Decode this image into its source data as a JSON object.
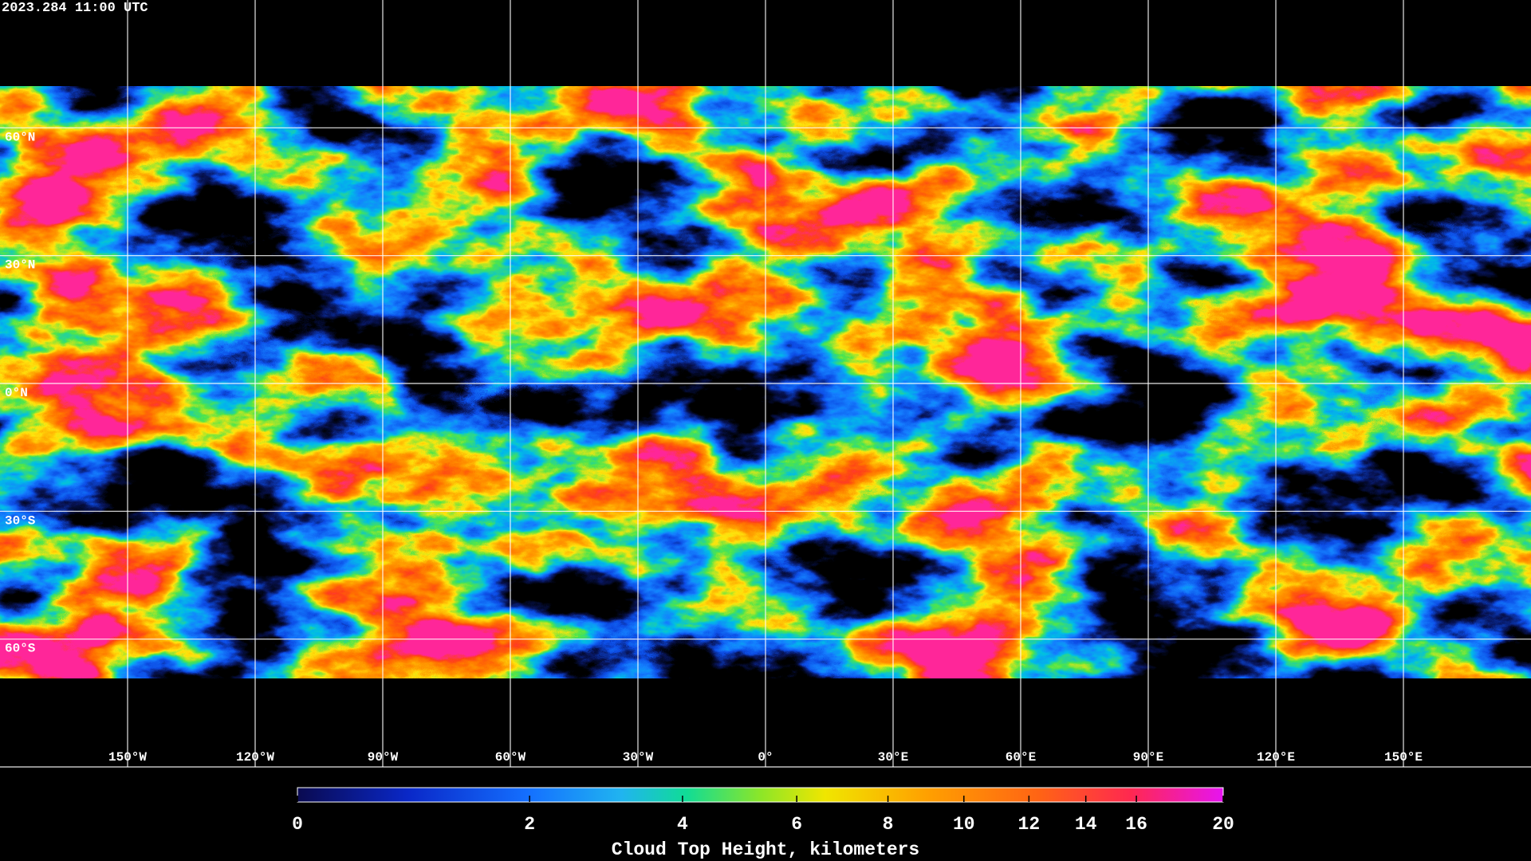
{
  "timestamp": "2023.284 11:00 UTC",
  "map": {
    "xlim": [
      -180,
      180
    ],
    "ylim": [
      -90,
      90
    ],
    "xticks": [
      {
        "value": -150,
        "label": "150°W"
      },
      {
        "value": -120,
        "label": "120°W"
      },
      {
        "value": -90,
        "label": "90°W"
      },
      {
        "value": -60,
        "label": "60°W"
      },
      {
        "value": -30,
        "label": "30°W"
      },
      {
        "value": 0,
        "label": "0°"
      },
      {
        "value": 30,
        "label": "30°E"
      },
      {
        "value": 60,
        "label": "60°E"
      },
      {
        "value": 90,
        "label": "90°E"
      },
      {
        "value": 120,
        "label": "120°E"
      },
      {
        "value": 150,
        "label": "150°E"
      }
    ],
    "yticks": [
      {
        "value": 60,
        "label": "60°N"
      },
      {
        "value": 30,
        "label": "30°N"
      },
      {
        "value": 0,
        "label": "0°N"
      },
      {
        "value": -30,
        "label": "30°S"
      },
      {
        "value": -60,
        "label": "60°S"
      }
    ]
  },
  "colorbar": {
    "label": "Cloud Top Height, kilometers",
    "lim": [
      0,
      20
    ],
    "ticks": [
      0,
      2,
      4,
      6,
      8,
      10,
      12,
      14,
      16,
      20
    ]
  }
}
